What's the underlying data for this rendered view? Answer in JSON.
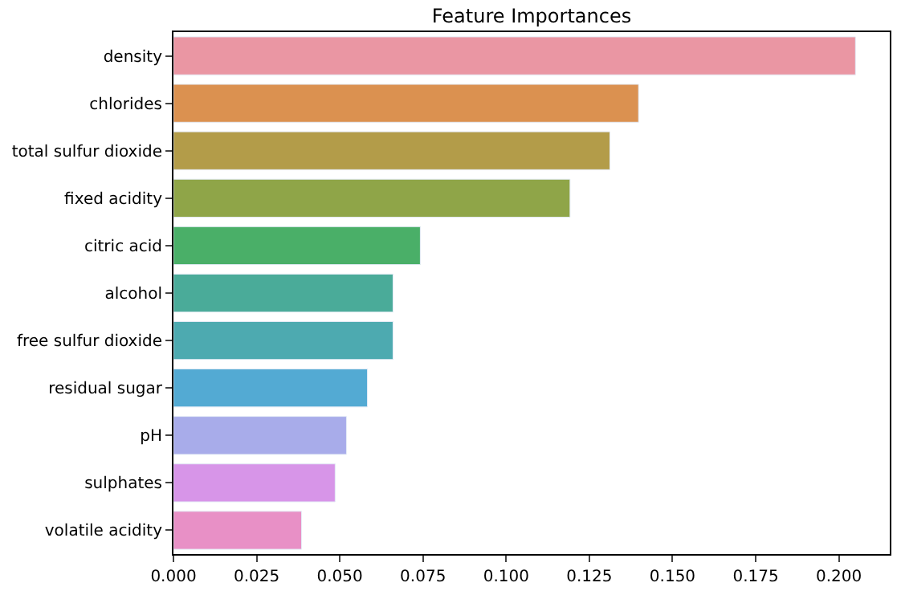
{
  "chart_data": {
    "type": "bar",
    "orientation": "horizontal",
    "title": "Feature Importances",
    "categories": [
      "density",
      "chlorides",
      "total sulfur dioxide",
      "fixed acidity",
      "citric acid",
      "alcohol",
      "free sulfur dioxide",
      "residual sugar",
      "pH",
      "sulphates",
      "volatile acidity"
    ],
    "values": [
      0.205,
      0.1398,
      0.1312,
      0.1192,
      0.0742,
      0.066,
      0.066,
      0.0583,
      0.052,
      0.0486,
      0.0385
    ],
    "colors": [
      "#ea96a3",
      "#db9150",
      "#b39c49",
      "#8fa548",
      "#4aaf68",
      "#4aab99",
      "#4daab0",
      "#53aad3",
      "#a8acea",
      "#d795e8",
      "#e890c6"
    ],
    "xlim": [
      0,
      0.2153
    ],
    "xticks": [
      {
        "value": 0,
        "label": "0.000"
      },
      {
        "value": 0.025,
        "label": "0.025"
      },
      {
        "value": 0.05,
        "label": "0.050"
      },
      {
        "value": 0.075,
        "label": "0.075"
      },
      {
        "value": 0.1,
        "label": "0.100"
      },
      {
        "value": 0.125,
        "label": "0.125"
      },
      {
        "value": 0.15,
        "label": "0.150"
      },
      {
        "value": 0.175,
        "label": "0.175"
      },
      {
        "value": 0.2,
        "label": "0.200"
      }
    ]
  }
}
